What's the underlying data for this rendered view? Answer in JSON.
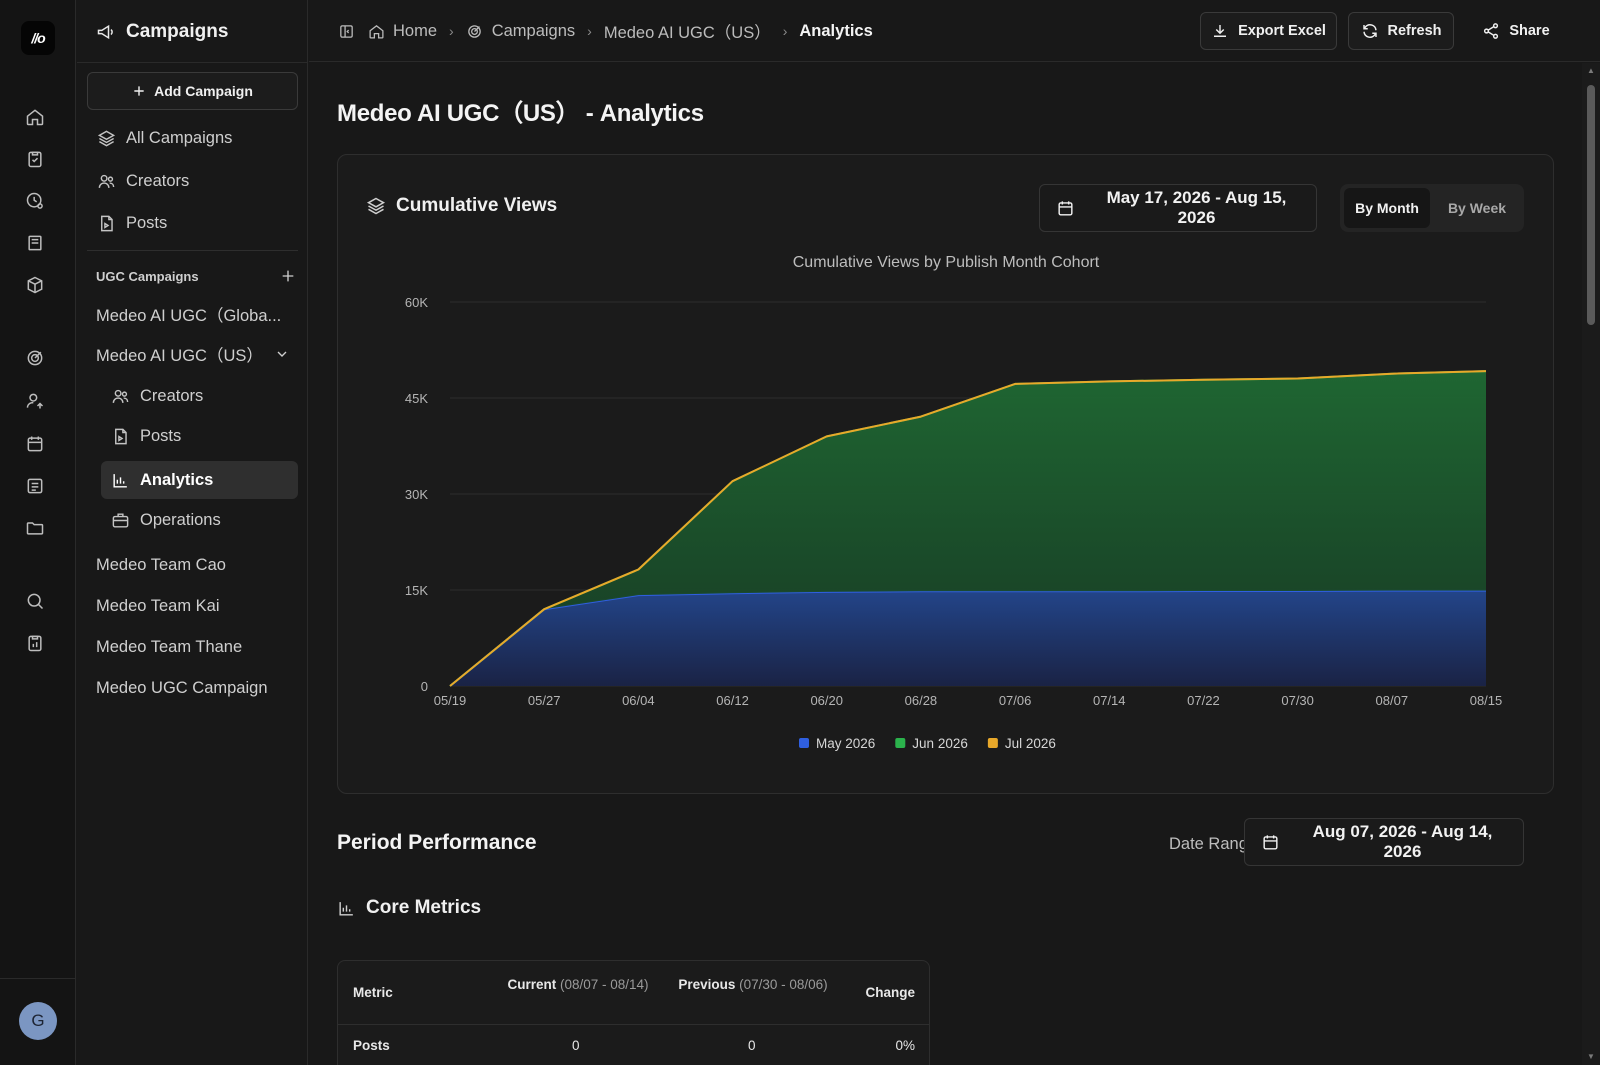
{
  "sidebar": {
    "title": "Campaigns",
    "add_campaign": "Add Campaign",
    "nav": [
      {
        "label": "All Campaigns",
        "icon": "layers-icon"
      },
      {
        "label": "Creators",
        "icon": "users-icon"
      },
      {
        "label": "Posts",
        "icon": "file-icon"
      }
    ],
    "section_title": "UGC Campaigns",
    "campaigns": [
      {
        "label": "Medeo AI UGC（Globa..."
      },
      {
        "label": "Medeo AI UGC（US）"
      }
    ],
    "sub_items": [
      {
        "label": "Creators",
        "icon": "users-icon"
      },
      {
        "label": "Posts",
        "icon": "file-icon"
      },
      {
        "label": "Analytics",
        "icon": "bar-chart-icon",
        "active": true
      },
      {
        "label": "Operations",
        "icon": "briefcase-icon"
      }
    ],
    "other_campaigns": [
      {
        "label": "Medeo Team Cao"
      },
      {
        "label": "Medeo Team Kai"
      },
      {
        "label": "Medeo Team Thane"
      },
      {
        "label": "Medeo UGC Campaign"
      }
    ]
  },
  "user": {
    "initial": "G"
  },
  "breadcrumb": {
    "home": "Home",
    "campaigns": "Campaigns",
    "campaign": "Medeo AI UGC（US）",
    "current": "Analytics"
  },
  "toolbar": {
    "export": "Export Excel",
    "refresh": "Refresh",
    "share": "Share"
  },
  "page": {
    "title": "Medeo AI UGC（US） - Analytics"
  },
  "chart_card": {
    "title": "Cumulative Views",
    "date_range": "May 17, 2026 - Aug 15, 2026",
    "toggle": [
      "By Month",
      "By Week"
    ],
    "toggle_selected": "By Month"
  },
  "chart_data": {
    "type": "area",
    "stacked": true,
    "title": "Cumulative Views by Publish Month Cohort",
    "x": [
      "05/19",
      "05/27",
      "06/04",
      "06/12",
      "06/20",
      "06/28",
      "07/06",
      "07/14",
      "07/22",
      "07/30",
      "08/07",
      "08/15"
    ],
    "x_ticks": [
      "05/19",
      "05/27",
      "06/04",
      "06/12",
      "06/20",
      "06/28",
      "07/06",
      "07/14",
      "07/22",
      "07/30",
      "08/07",
      "08/15"
    ],
    "y_ticks": [
      "0",
      "15K",
      "30K",
      "45K",
      "60K"
    ],
    "ylim": [
      0,
      60000
    ],
    "grid": true,
    "legend_position": "bottom",
    "series": [
      {
        "name": "May 2026",
        "color": "#2f5fe0",
        "values": [
          0,
          12000,
          14200,
          14500,
          14700,
          14800,
          14800,
          14800,
          14850,
          14850,
          14900,
          14900
        ]
      },
      {
        "name": "Jun 2026",
        "color": "#2bb24c",
        "values": [
          0,
          0,
          4000,
          17500,
          24300,
          27300,
          32400,
          32800,
          33000,
          33200,
          33900,
          34300
        ]
      },
      {
        "name": "Jul 2026",
        "color": "#e8a82a",
        "values": [
          0,
          0,
          0,
          0,
          0,
          0,
          0,
          0,
          0,
          0,
          0,
          0
        ]
      }
    ]
  },
  "period": {
    "title": "Period Performance",
    "date_label": "Date Range",
    "date_range": "Aug 07, 2026 - Aug 14, 2026"
  },
  "core_metrics": {
    "title": "Core Metrics",
    "headers": {
      "metric": "Metric",
      "current": "Current",
      "current_range": "(08/07 - 08/14)",
      "previous": "Previous",
      "previous_range": "(07/30 - 08/06)",
      "change": "Change"
    },
    "rows": [
      {
        "metric": "Posts",
        "current": "0",
        "previous": "0",
        "change": "0%"
      }
    ]
  }
}
